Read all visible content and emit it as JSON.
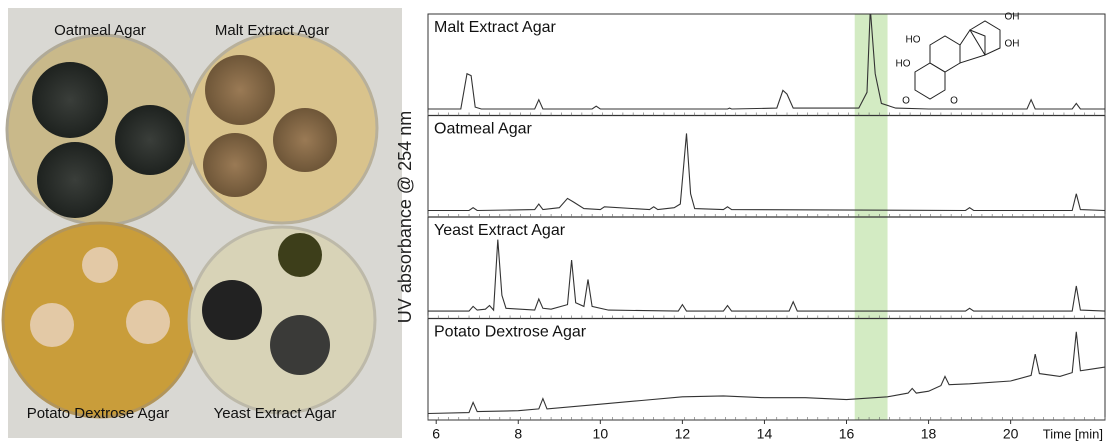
{
  "photo": {
    "labels": [
      "Oatmeal Agar",
      "Malt Extract Agar",
      "Potato Dextrose Agar",
      "Yeast Extract Agar"
    ]
  },
  "structure": {
    "labels": [
      "OH",
      "OH",
      "HO",
      "HO",
      "O",
      "O"
    ]
  },
  "chart_data": {
    "type": "line",
    "ylabel": "UV absorbance @ 254 nm",
    "xlabel": "Time [min]",
    "xlim": [
      5.8,
      22.3
    ],
    "xticks": [
      6,
      8,
      10,
      12,
      14,
      16,
      18,
      20
    ],
    "ylim": [
      -5,
      100
    ],
    "highlight": [
      16.2,
      17.0
    ],
    "highlight_color": "#d3ebc3",
    "series": [
      {
        "name": "Malt Extract Agar",
        "color": "#333333",
        "x": [
          5.8,
          6.6,
          6.75,
          6.85,
          6.95,
          7.1,
          8.4,
          8.5,
          8.6,
          9.8,
          9.9,
          10,
          13.1,
          13.15,
          13.2,
          14.3,
          14.45,
          14.55,
          14.7,
          16.3,
          16.5,
          16.58,
          16.7,
          16.85,
          17.2,
          18,
          20.4,
          20.5,
          20.6,
          21.5,
          21.6,
          21.7,
          22.3
        ],
        "values": [
          2,
          2,
          40,
          38,
          4,
          2,
          2,
          12,
          2,
          2,
          5,
          2,
          2,
          3,
          2,
          3,
          22,
          18,
          3,
          3,
          20,
          110,
          40,
          8,
          3,
          2,
          2,
          12,
          2,
          2,
          8,
          2,
          2
        ]
      },
      {
        "name": "Oatmeal Agar",
        "color": "#333333",
        "x": [
          5.8,
          6.8,
          6.9,
          7.0,
          8.4,
          8.5,
          8.6,
          9.0,
          9.2,
          9.35,
          9.6,
          10,
          10.1,
          11.2,
          11.3,
          11.4,
          11.8,
          11.95,
          12.1,
          12.2,
          12.3,
          13.0,
          13.1,
          13.2,
          18.9,
          19.0,
          19.1,
          21.5,
          21.6,
          21.7,
          22.3
        ],
        "values": [
          2,
          2,
          5,
          2,
          3,
          9,
          3,
          5,
          15,
          11,
          4,
          3,
          6,
          3,
          6,
          3,
          5,
          9,
          85,
          20,
          4,
          3,
          6,
          3,
          2,
          5,
          2,
          2,
          20,
          3,
          2
        ]
      },
      {
        "name": "Yeast Extract Agar",
        "color": "#333333",
        "x": [
          5.8,
          6.8,
          6.9,
          7.0,
          7.2,
          7.3,
          7.4,
          7.5,
          7.6,
          7.7,
          8.4,
          8.5,
          8.6,
          8.8,
          9.2,
          9.3,
          9.4,
          9.6,
          9.7,
          9.8,
          10.2,
          11.9,
          12.0,
          12.1,
          13.0,
          13.1,
          13.2,
          14.6,
          14.7,
          14.8,
          17.0,
          18.9,
          19.0,
          19.1,
          21.5,
          21.6,
          21.7,
          22.3
        ],
        "values": [
          3,
          3,
          8,
          4,
          5,
          9,
          4,
          80,
          20,
          6,
          4,
          16,
          6,
          5,
          10,
          58,
          12,
          8,
          37,
          8,
          4,
          3,
          10,
          3,
          3,
          9,
          3,
          3,
          13,
          3,
          3,
          3,
          6,
          3,
          3,
          30,
          4,
          3
        ]
      },
      {
        "name": "Potato Dextrose Agar",
        "color": "#333333",
        "x": [
          5.8,
          6.8,
          6.9,
          7.0,
          8.0,
          8.5,
          8.6,
          8.7,
          10,
          11,
          12,
          13,
          14,
          15,
          16,
          17,
          17.5,
          17.6,
          17.7,
          18,
          18.3,
          18.4,
          18.5,
          19,
          20,
          20.5,
          20.6,
          20.7,
          21.2,
          21.5,
          21.6,
          21.7,
          22,
          22.3
        ],
        "values": [
          2,
          3,
          14,
          4,
          5,
          7,
          18,
          7,
          12,
          16,
          20,
          21,
          19,
          19,
          17,
          20,
          24,
          29,
          24,
          26,
          32,
          42,
          33,
          34,
          37,
          43,
          66,
          45,
          42,
          46,
          90,
          48,
          50,
          52
        ]
      }
    ]
  }
}
